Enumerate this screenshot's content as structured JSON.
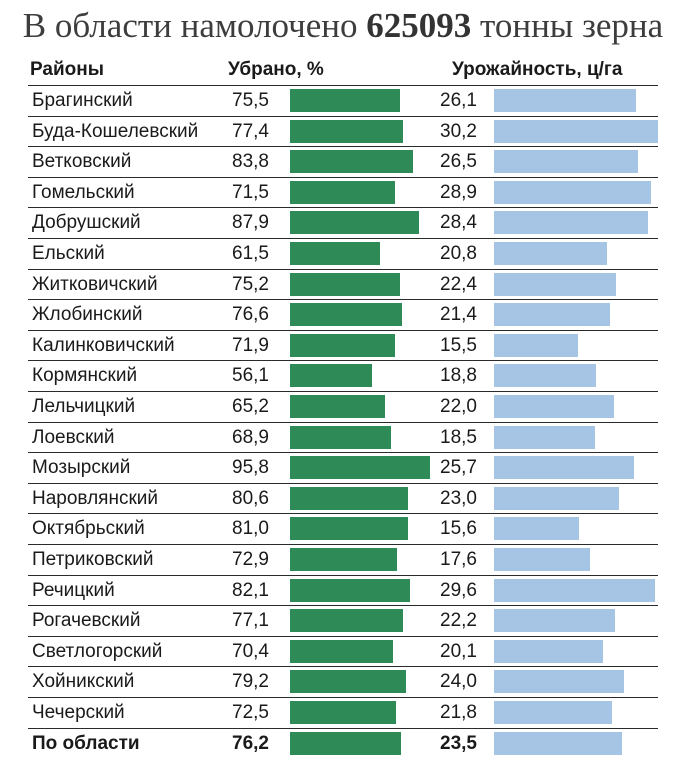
{
  "title": {
    "prefix": "В области намолочено",
    "number": "625093",
    "suffix": "тонны зерна"
  },
  "headers": {
    "district": "Районы",
    "harvested": "Убрано, %",
    "yield": "Урожайность, ц/га"
  },
  "colors": {
    "harvested_bar": "#2e8b57",
    "yield_bar": "#a6c4e4"
  },
  "chart_data": {
    "type": "bar",
    "title": "В области намолочено 625093 тонны зерна",
    "categories": [
      "Брагинский",
      "Буда-Кошелевский",
      "Ветковский",
      "Гомельский",
      "Добрушский",
      "Ельский",
      "Житковичский",
      "Жлобинский",
      "Калинковичский",
      "Кормянский",
      "Лельчицкий",
      "Лоевский",
      "Мозырский",
      "Наровлянский",
      "Октябрьский",
      "Петриковский",
      "Речицкий",
      "Рогачевский",
      "Светлогорский",
      "Хойникский",
      "Чечерский"
    ],
    "series": [
      {
        "name": "Убрано, %",
        "values": [
          "75,5",
          "77,4",
          "83,8",
          "71,5",
          "87,9",
          "61,5",
          "75,2",
          "76,6",
          "71,9",
          "56,1",
          "65,2",
          "68,9",
          "95,8",
          "80,6",
          "81,0",
          "72,9",
          "82,1",
          "77,1",
          "70,4",
          "79,2",
          "72,5"
        ]
      },
      {
        "name": "Урожайность, ц/га",
        "values": [
          "26,1",
          "30,2",
          "26,5",
          "28,9",
          "28,4",
          "20,8",
          "22,4",
          "21,4",
          "15,5",
          "18,8",
          "22,0",
          "18,5",
          "25,7",
          "23,0",
          "15,6",
          "17,6",
          "29,6",
          "22,2",
          "20,1",
          "24,0",
          "21,8"
        ]
      }
    ],
    "total": {
      "label": "По области",
      "harvested": "76,2",
      "yield": "23,5"
    }
  }
}
